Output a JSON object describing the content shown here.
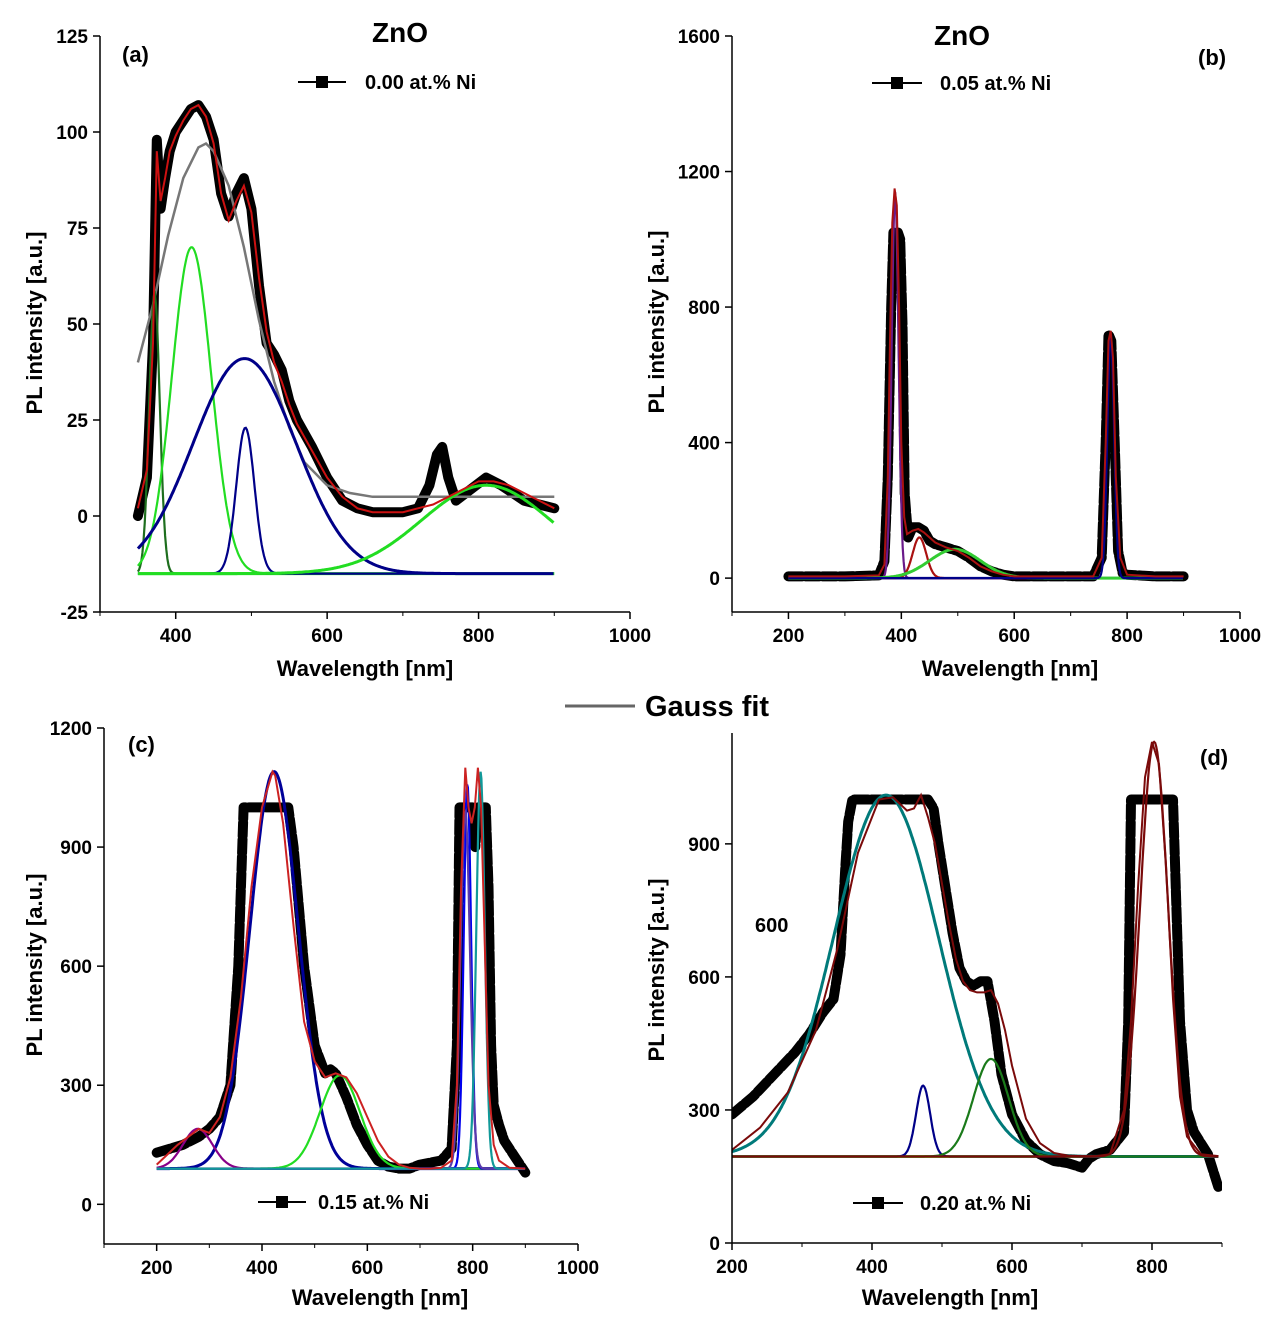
{
  "figure": {
    "gauss_fit_label": "Gauss fit",
    "gauss_fit_color": "#666666"
  },
  "chart_data": [
    {
      "id": "a",
      "type": "line",
      "panel_label": "(a)",
      "title": "ZnO",
      "legend": "0.00 at.% Ni",
      "xlabel": "Wavelength [nm]",
      "ylabel": "PL intensity [a.u.]",
      "xlim": [
        300,
        1000
      ],
      "ylim": [
        -25,
        125
      ],
      "xticks": [
        400,
        600,
        800,
        1000
      ],
      "yticks": [
        -25,
        0,
        25,
        50,
        75,
        100,
        125
      ],
      "baseline": -15,
      "series": [
        {
          "role": "data",
          "color": "#000000",
          "x": [
            350,
            362,
            370,
            375,
            380,
            386,
            392,
            400,
            410,
            420,
            430,
            440,
            450,
            460,
            470,
            480,
            490,
            500,
            510,
            520,
            530,
            540,
            550,
            560,
            580,
            600,
            620,
            640,
            660,
            680,
            700,
            720,
            735,
            745,
            752,
            760,
            770,
            790,
            810,
            830,
            860,
            880,
            900
          ],
          "y": [
            0,
            10,
            45,
            98,
            80,
            88,
            95,
            100,
            103,
            106,
            107,
            104,
            98,
            84,
            78,
            84,
            88,
            80,
            60,
            45,
            42,
            38,
            30,
            25,
            18,
            10,
            4,
            2,
            1,
            1,
            1,
            2,
            8,
            16,
            18,
            10,
            4,
            7,
            10,
            8,
            4,
            3,
            2
          ]
        },
        {
          "role": "cumulative-fit",
          "color": "#cc1111",
          "x": [
            350,
            362,
            370,
            375,
            380,
            386,
            392,
            400,
            410,
            420,
            430,
            440,
            450,
            460,
            470,
            480,
            490,
            500,
            510,
            520,
            530,
            540,
            550,
            560,
            580,
            600,
            620,
            640,
            660,
            680,
            700,
            720,
            740,
            760,
            780,
            800,
            820,
            840,
            860,
            880,
            900
          ],
          "y": [
            2,
            12,
            45,
            95,
            82,
            88,
            95,
            99,
            103,
            106,
            107,
            104,
            97,
            84,
            77,
            82,
            86,
            79,
            62,
            48,
            40,
            35,
            29,
            24,
            17,
            10,
            5,
            2,
            1,
            1,
            1,
            2,
            3,
            5,
            7,
            9,
            9,
            8,
            6,
            4,
            2
          ]
        },
        {
          "role": "gauss-fit",
          "color": "#777777",
          "x": [
            350,
            370,
            390,
            410,
            430,
            440,
            450,
            470,
            490,
            510,
            530,
            550,
            570,
            600,
            630,
            660,
            700,
            750,
            800,
            850,
            900
          ],
          "y": [
            40,
            55,
            73,
            88,
            96,
            97,
            95,
            86,
            70,
            51,
            35,
            23,
            14,
            8,
            6,
            5,
            5,
            5,
            5,
            5,
            5
          ]
        },
        {
          "role": "peak",
          "color": "#1e6e1e",
          "center": 372,
          "sigma": 7,
          "amplitude": 73
        },
        {
          "role": "peak",
          "color": "#22dd22",
          "center": 421,
          "sigma": 26,
          "amplitude": 85
        },
        {
          "role": "peak",
          "color": "#000088",
          "center": 492,
          "sigma": 12,
          "amplitude": 38
        },
        {
          "role": "peak",
          "color": "#000088",
          "center": 491,
          "sigma": 68,
          "amplitude": 56
        },
        {
          "role": "peak",
          "color": "#22dd22",
          "center": 810,
          "sigma": 85,
          "amplitude": 23
        }
      ]
    },
    {
      "id": "b",
      "type": "line",
      "panel_label": "(b)",
      "title": "ZnO",
      "legend": "0.05 at.% Ni",
      "xlabel": "Wavelength [nm]",
      "ylabel": "PL intensity [a.u.]",
      "xlim": [
        100,
        1000
      ],
      "ylim": [
        -100,
        1600
      ],
      "xticks": [
        200,
        400,
        600,
        800,
        1000
      ],
      "yticks": [
        0,
        400,
        800,
        1200,
        1600
      ],
      "baseline": 0,
      "series": [
        {
          "role": "data",
          "color": "#000000",
          "x": [
            200,
            300,
            360,
            370,
            376,
            382,
            386,
            390,
            394,
            398,
            402,
            406,
            412,
            420,
            430,
            440,
            450,
            460,
            470,
            480,
            500,
            520,
            540,
            560,
            580,
            600,
            650,
            700,
            740,
            755,
            762,
            767,
            772,
            778,
            784,
            792,
            800,
            850,
            900
          ],
          "y": [
            5,
            5,
            8,
            50,
            300,
            800,
            1020,
            1000,
            1020,
            1000,
            750,
            250,
            120,
            150,
            150,
            140,
            110,
            100,
            95,
            90,
            80,
            60,
            35,
            20,
            10,
            5,
            5,
            5,
            5,
            60,
            400,
            720,
            700,
            400,
            80,
            15,
            10,
            5,
            5
          ]
        },
        {
          "role": "cumulative-fit",
          "color": "#aa1111",
          "x": [
            200,
            300,
            360,
            370,
            376,
            380,
            384,
            388,
            392,
            396,
            400,
            405,
            410,
            420,
            430,
            440,
            450,
            460,
            480,
            500,
            520,
            540,
            560,
            580,
            600,
            650,
            700,
            740,
            755,
            762,
            767,
            771,
            775,
            780,
            788,
            800,
            850,
            900
          ],
          "y": [
            5,
            5,
            8,
            40,
            300,
            700,
            1050,
            1150,
            1100,
            800,
            400,
            180,
            130,
            140,
            145,
            135,
            120,
            105,
            90,
            80,
            60,
            35,
            20,
            10,
            5,
            5,
            5,
            5,
            60,
            400,
            700,
            730,
            650,
            300,
            60,
            10,
            5,
            5
          ]
        },
        {
          "role": "peak",
          "color": "#6a1a8a",
          "center": 389,
          "sigma": 6,
          "amplitude": 1140
        },
        {
          "role": "peak",
          "color": "#aa1111",
          "center": 432,
          "sigma": 12,
          "amplitude": 120
        },
        {
          "role": "peak",
          "color": "#33cc33",
          "center": 495,
          "sigma": 45,
          "amplitude": 85
        },
        {
          "role": "peak",
          "color": "#000088",
          "center": 771,
          "sigma": 6,
          "amplitude": 720
        }
      ]
    },
    {
      "id": "c",
      "type": "line",
      "panel_label": "(c)",
      "legend": "0.15 at.% Ni",
      "xlabel": "Wavelength [nm]",
      "ylabel": "PL intensity [a.u.]",
      "xlim": [
        100,
        1000
      ],
      "ylim": [
        -100,
        1200
      ],
      "xticks": [
        200,
        400,
        600,
        800,
        1000
      ],
      "yticks": [
        0,
        300,
        600,
        900,
        1200
      ],
      "baseline": 90,
      "series": [
        {
          "role": "data",
          "color": "#000000",
          "x": [
            200,
            250,
            280,
            300,
            320,
            340,
            355,
            365,
            372,
            380,
            400,
            420,
            440,
            450,
            460,
            480,
            500,
            520,
            530,
            540,
            560,
            580,
            600,
            620,
            640,
            660,
            680,
            700,
            720,
            740,
            760,
            770,
            775,
            780,
            790,
            800,
            805,
            810,
            820,
            825,
            830,
            835,
            840,
            850,
            860,
            880,
            900
          ],
          "y": [
            130,
            150,
            170,
            190,
            220,
            300,
            600,
            1000,
            1000,
            1000,
            1000,
            1000,
            1000,
            1000,
            900,
            600,
            400,
            330,
            340,
            330,
            270,
            200,
            150,
            110,
            95,
            90,
            90,
            100,
            105,
            110,
            140,
            400,
            1000,
            1000,
            1000,
            1000,
            900,
            1000,
            1000,
            1000,
            800,
            400,
            250,
            200,
            160,
            120,
            80
          ]
        },
        {
          "role": "cumulative-fit",
          "color": "#cc2222",
          "x": [
            200,
            240,
            280,
            300,
            320,
            340,
            360,
            380,
            400,
            420,
            425,
            440,
            460,
            480,
            500,
            520,
            540,
            560,
            580,
            600,
            620,
            640,
            660,
            680,
            700,
            720,
            740,
            760,
            770,
            778,
            786,
            792,
            798,
            804,
            810,
            816,
            822,
            830,
            840,
            850,
            870,
            900
          ],
          "y": [
            100,
            150,
            190,
            180,
            220,
            320,
            520,
            800,
            1000,
            1090,
            1080,
            960,
            700,
            460,
            360,
            320,
            330,
            320,
            280,
            220,
            160,
            120,
            100,
            92,
            90,
            90,
            92,
            110,
            300,
            800,
            1100,
            1000,
            960,
            1000,
            1100,
            1000,
            700,
            300,
            150,
            110,
            92,
            90
          ]
        },
        {
          "role": "peak",
          "color": "#000099",
          "center": 423,
          "sigma": 46,
          "amplitude": 1000
        },
        {
          "role": "peak",
          "color": "#880088",
          "center": 278,
          "sigma": 28,
          "amplitude": 100
        },
        {
          "role": "peak",
          "color": "#22dd22",
          "center": 548,
          "sigma": 38,
          "amplitude": 235
        },
        {
          "role": "peak",
          "color": "#0000ee",
          "center": 790,
          "sigma": 7,
          "amplitude": 970
        },
        {
          "role": "peak",
          "color": "#5a3aaa",
          "center": 786,
          "sigma": 9,
          "amplitude": 900
        },
        {
          "role": "peak",
          "color": "#119999",
          "center": 815,
          "sigma": 8,
          "amplitude": 1000
        }
      ]
    },
    {
      "id": "d",
      "type": "line",
      "panel_label": "(d)",
      "legend": "0.20 at.% Ni",
      "xlabel": "Wavelength [nm]",
      "ylabel": "PL intensity [a.u.]",
      "annotation": "600",
      "xlim": [
        200,
        900
      ],
      "ylim": [
        0,
        1150
      ],
      "xticks": [
        200,
        400,
        600,
        800
      ],
      "yticks": [
        0,
        300,
        600,
        900
      ],
      "baseline": 195,
      "series": [
        {
          "role": "data",
          "color": "#000000",
          "x": [
            200,
            230,
            260,
            290,
            310,
            330,
            345,
            355,
            362,
            366,
            372,
            380,
            400,
            420,
            440,
            460,
            470,
            480,
            488,
            495,
            505,
            515,
            525,
            535,
            545,
            555,
            565,
            575,
            585,
            600,
            620,
            640,
            660,
            680,
            700,
            710,
            720,
            740,
            760,
            766,
            770,
            778,
            790,
            800,
            810,
            820,
            830,
            834,
            840,
            850,
            860,
            880,
            895
          ],
          "y": [
            290,
            330,
            380,
            430,
            470,
            520,
            550,
            650,
            850,
            950,
            1000,
            1000,
            1000,
            1000,
            1000,
            1000,
            1000,
            1000,
            980,
            900,
            800,
            700,
            620,
            590,
            580,
            590,
            590,
            500,
            380,
            290,
            230,
            200,
            185,
            180,
            170,
            190,
            200,
            210,
            250,
            500,
            1000,
            1000,
            1000,
            1000,
            1000,
            1000,
            1000,
            800,
            500,
            300,
            250,
            200,
            125
          ]
        },
        {
          "role": "cumulative-fit",
          "color": "#7a0a0a",
          "x": [
            200,
            240,
            280,
            320,
            350,
            380,
            410,
            430,
            450,
            460,
            470,
            480,
            490,
            500,
            510,
            520,
            530,
            540,
            550,
            560,
            570,
            580,
            590,
            600,
            620,
            640,
            660,
            680,
            700,
            720,
            740,
            760,
            770,
            780,
            790,
            800,
            810,
            820,
            830,
            840,
            850,
            870,
            895
          ],
          "y": [
            210,
            260,
            340,
            480,
            660,
            880,
            1000,
            1005,
            975,
            980,
            1010,
            960,
            900,
            810,
            720,
            640,
            590,
            570,
            565,
            565,
            570,
            540,
            480,
            400,
            280,
            225,
            203,
            197,
            196,
            196,
            200,
            300,
            500,
            800,
            1050,
            1130,
            1080,
            850,
            550,
            330,
            240,
            200,
            196
          ]
        },
        {
          "role": "peak",
          "color": "#007a7a",
          "center": 420,
          "sigma": 75,
          "amplitude": 815
        },
        {
          "role": "peak",
          "color": "#000088",
          "center": 473,
          "sigma": 10,
          "amplitude": 160
        },
        {
          "role": "peak",
          "color": "#1a7a1a",
          "center": 570,
          "sigma": 25,
          "amplitude": 220
        },
        {
          "role": "peak",
          "color": "#7a0a0a",
          "center": 803,
          "sigma": 20,
          "amplitude": 935
        },
        {
          "role": "baseline",
          "color": "#66cc33",
          "y": 195
        }
      ]
    }
  ]
}
